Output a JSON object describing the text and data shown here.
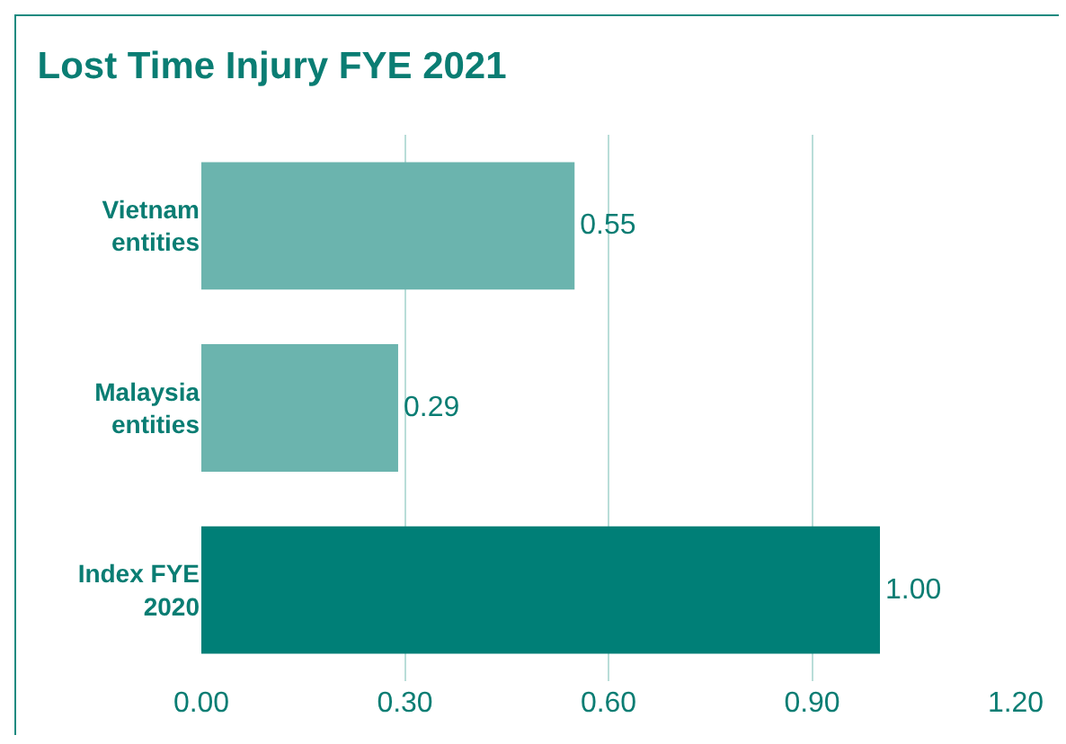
{
  "chart_data": {
    "type": "bar",
    "orientation": "horizontal",
    "title": "Lost Time Injury FYE 2021",
    "categories": [
      "Vietnam\nentities",
      "Malaysia\nentities",
      "Index FYE\n2020"
    ],
    "values": [
      0.55,
      0.29,
      1.0
    ],
    "colors": [
      "#6bb4ae",
      "#6bb4ae",
      "#007f77"
    ],
    "value_labels": [
      "0.55",
      "0.29",
      "1.00"
    ],
    "xlim": [
      0,
      1.2
    ],
    "xticks": [
      {
        "value": 0,
        "label": "0.00"
      },
      {
        "value": 0.3,
        "label": "0.30"
      },
      {
        "value": 0.6,
        "label": "0.60"
      },
      {
        "value": 0.9,
        "label": "0.90"
      },
      {
        "value": 1.2,
        "label": "1.20"
      }
    ],
    "grid": "x"
  }
}
